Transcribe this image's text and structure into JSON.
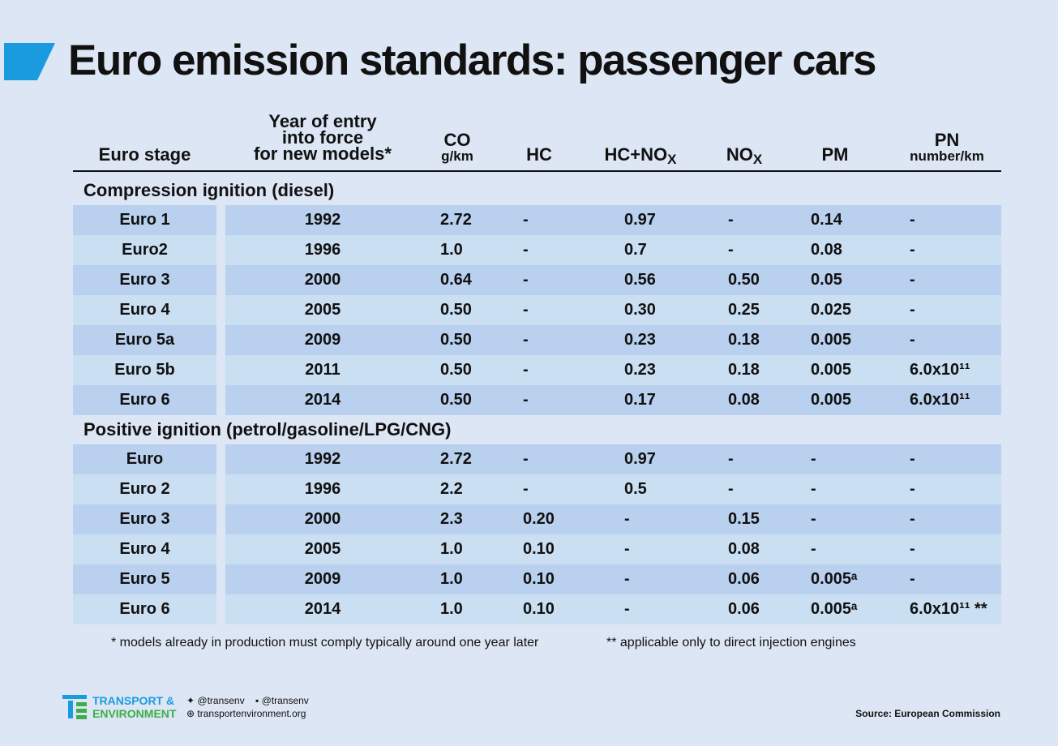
{
  "title": "Euro emission standards: passenger cars",
  "header": {
    "stage": "Euro stage",
    "year": [
      "Year of entry",
      "into force",
      "for new models*"
    ],
    "columns": [
      {
        "label": "CO",
        "unit": "g/km"
      },
      {
        "label": "HC"
      },
      {
        "label": "HC+NO",
        "sub": "X"
      },
      {
        "label": "NO",
        "sub": "X"
      },
      {
        "label": "PM"
      },
      {
        "label": "PN",
        "unit": "number/km"
      }
    ]
  },
  "sections": [
    {
      "title": "Compression ignition (diesel)",
      "rows": [
        [
          "Euro 1",
          "1992",
          "2.72",
          "-",
          "0.97",
          "-",
          "0.14",
          "-"
        ],
        [
          "Euro2",
          "1996",
          "1.0",
          "-",
          "0.7",
          "-",
          "0.08",
          "-"
        ],
        [
          "Euro 3",
          "2000",
          "0.64",
          "-",
          "0.56",
          "0.50",
          "0.05",
          "-"
        ],
        [
          "Euro 4",
          "2005",
          "0.50",
          "-",
          "0.30",
          "0.25",
          "0.025",
          "-"
        ],
        [
          "Euro 5a",
          "2009",
          "0.50",
          "-",
          "0.23",
          "0.18",
          "0.005",
          "-"
        ],
        [
          "Euro 5b",
          "2011",
          "0.50",
          "-",
          "0.23",
          "0.18",
          "0.005",
          "6.0x10¹¹"
        ],
        [
          "Euro 6",
          "2014",
          "0.50",
          "-",
          "0.17",
          "0.08",
          "0.005",
          "6.0x10¹¹"
        ]
      ]
    },
    {
      "title": "Positive ignition (petrol/gasoline/LPG/CNG)",
      "rows": [
        [
          "Euro",
          "1992",
          "2.72",
          "-",
          "0.97",
          "-",
          "-",
          "-"
        ],
        [
          "Euro 2",
          "1996",
          "2.2",
          "-",
          "0.5",
          "-",
          "-",
          "-"
        ],
        [
          "Euro 3",
          "2000",
          "2.3",
          "0.20",
          "-",
          "0.15",
          "-",
          "-"
        ],
        [
          "Euro 4",
          "2005",
          "1.0",
          "0.10",
          "-",
          "0.08",
          "-",
          "-"
        ],
        [
          "Euro 5",
          "2009",
          "1.0",
          "0.10",
          "-",
          "0.06",
          "0.005ᵃ",
          "-"
        ],
        [
          "Euro 6",
          "2014",
          "1.0",
          "0.10",
          "-",
          "0.06",
          "0.005ᵃ",
          "6.0x10¹¹ **"
        ]
      ]
    }
  ],
  "footnotes": [
    "* models already in production must comply typically around one year later",
    "** applicable only to direct injection engines"
  ],
  "footer": {
    "brand": [
      "TRANSPORT &",
      "ENVIRONMENT"
    ],
    "twitter": "@transenv",
    "facebook": "@transenv",
    "website": "transportenvironment.org",
    "source": "Source: European Commission"
  }
}
